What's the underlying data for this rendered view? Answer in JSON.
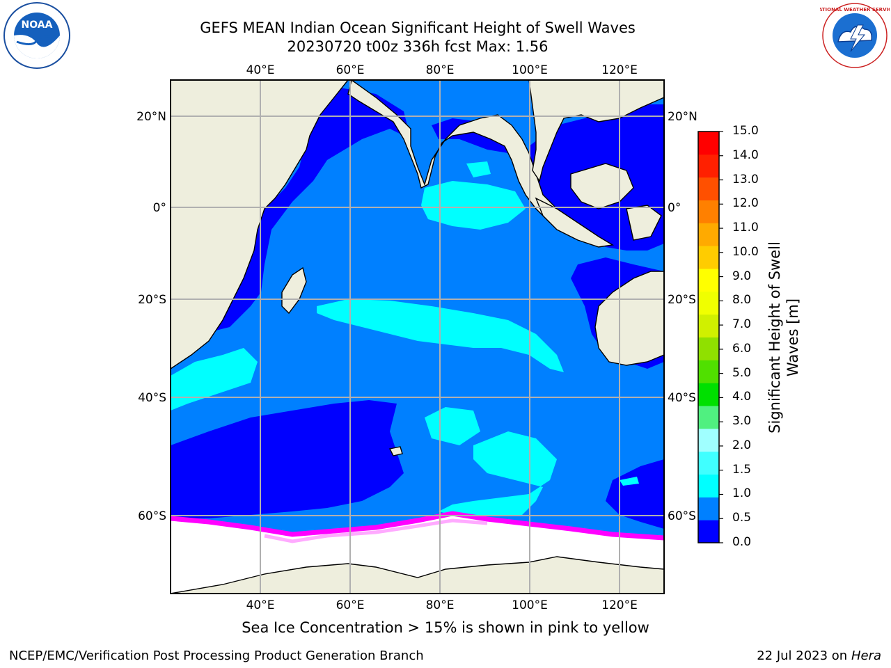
{
  "title": {
    "line1": "GEFS MEAN Indian Ocean Significant Height of Swell Waves",
    "line2": "20230720 t00z 336h fcst   Max: 1.56"
  },
  "logos": {
    "left": "noaa-logo",
    "right": "national-weather-service-logo",
    "left_text": "NOAA",
    "right_text": "NATIONAL WEATHER SERVICE"
  },
  "map": {
    "lon_labels": [
      "40°E",
      "60°E",
      "80°E",
      "100°E",
      "120°E"
    ],
    "lat_labels": [
      "20°N",
      "0°",
      "20°S",
      "40°S",
      "60°S"
    ],
    "lon_range": [
      20,
      130
    ],
    "lat_range": [
      -78,
      28
    ],
    "colors": {
      "land": "#eeeedd",
      "ice": "#ffffff",
      "band_0_0p5": "#0000ff",
      "band_0p5_1": "#0080ff",
      "band_1_1p5": "#00ffff",
      "ice_edge": "#ff00ff"
    }
  },
  "colorbar": {
    "ticks": [
      "15.0",
      "14.0",
      "13.0",
      "12.0",
      "11.0",
      "10.0",
      "9.0",
      "8.0",
      "7.0",
      "6.0",
      "5.0",
      "4.0",
      "3.0",
      "2.0",
      "1.5",
      "1.0",
      "0.5",
      "0.0"
    ],
    "colors_bottom_to_top": [
      "#0000ff",
      "#0080ff",
      "#00ffff",
      "#40ffff",
      "#a0ffff",
      "#50f080",
      "#00e000",
      "#50e000",
      "#90e000",
      "#d0f000",
      "#f0ff00",
      "#ffff00",
      "#ffcc00",
      "#ffaa00",
      "#ff8000",
      "#ff5000",
      "#ff2000",
      "#ff0000"
    ],
    "label": "Significant Height of Swell Waves [m]"
  },
  "footer": {
    "note": "Sea Ice Concentration > 15% is shown in pink to yellow",
    "left": "NCEP/EMC/Verification Post Processing Product Generation Branch",
    "right_date": "22 Jul 2023 on",
    "right_host": "Hera"
  }
}
